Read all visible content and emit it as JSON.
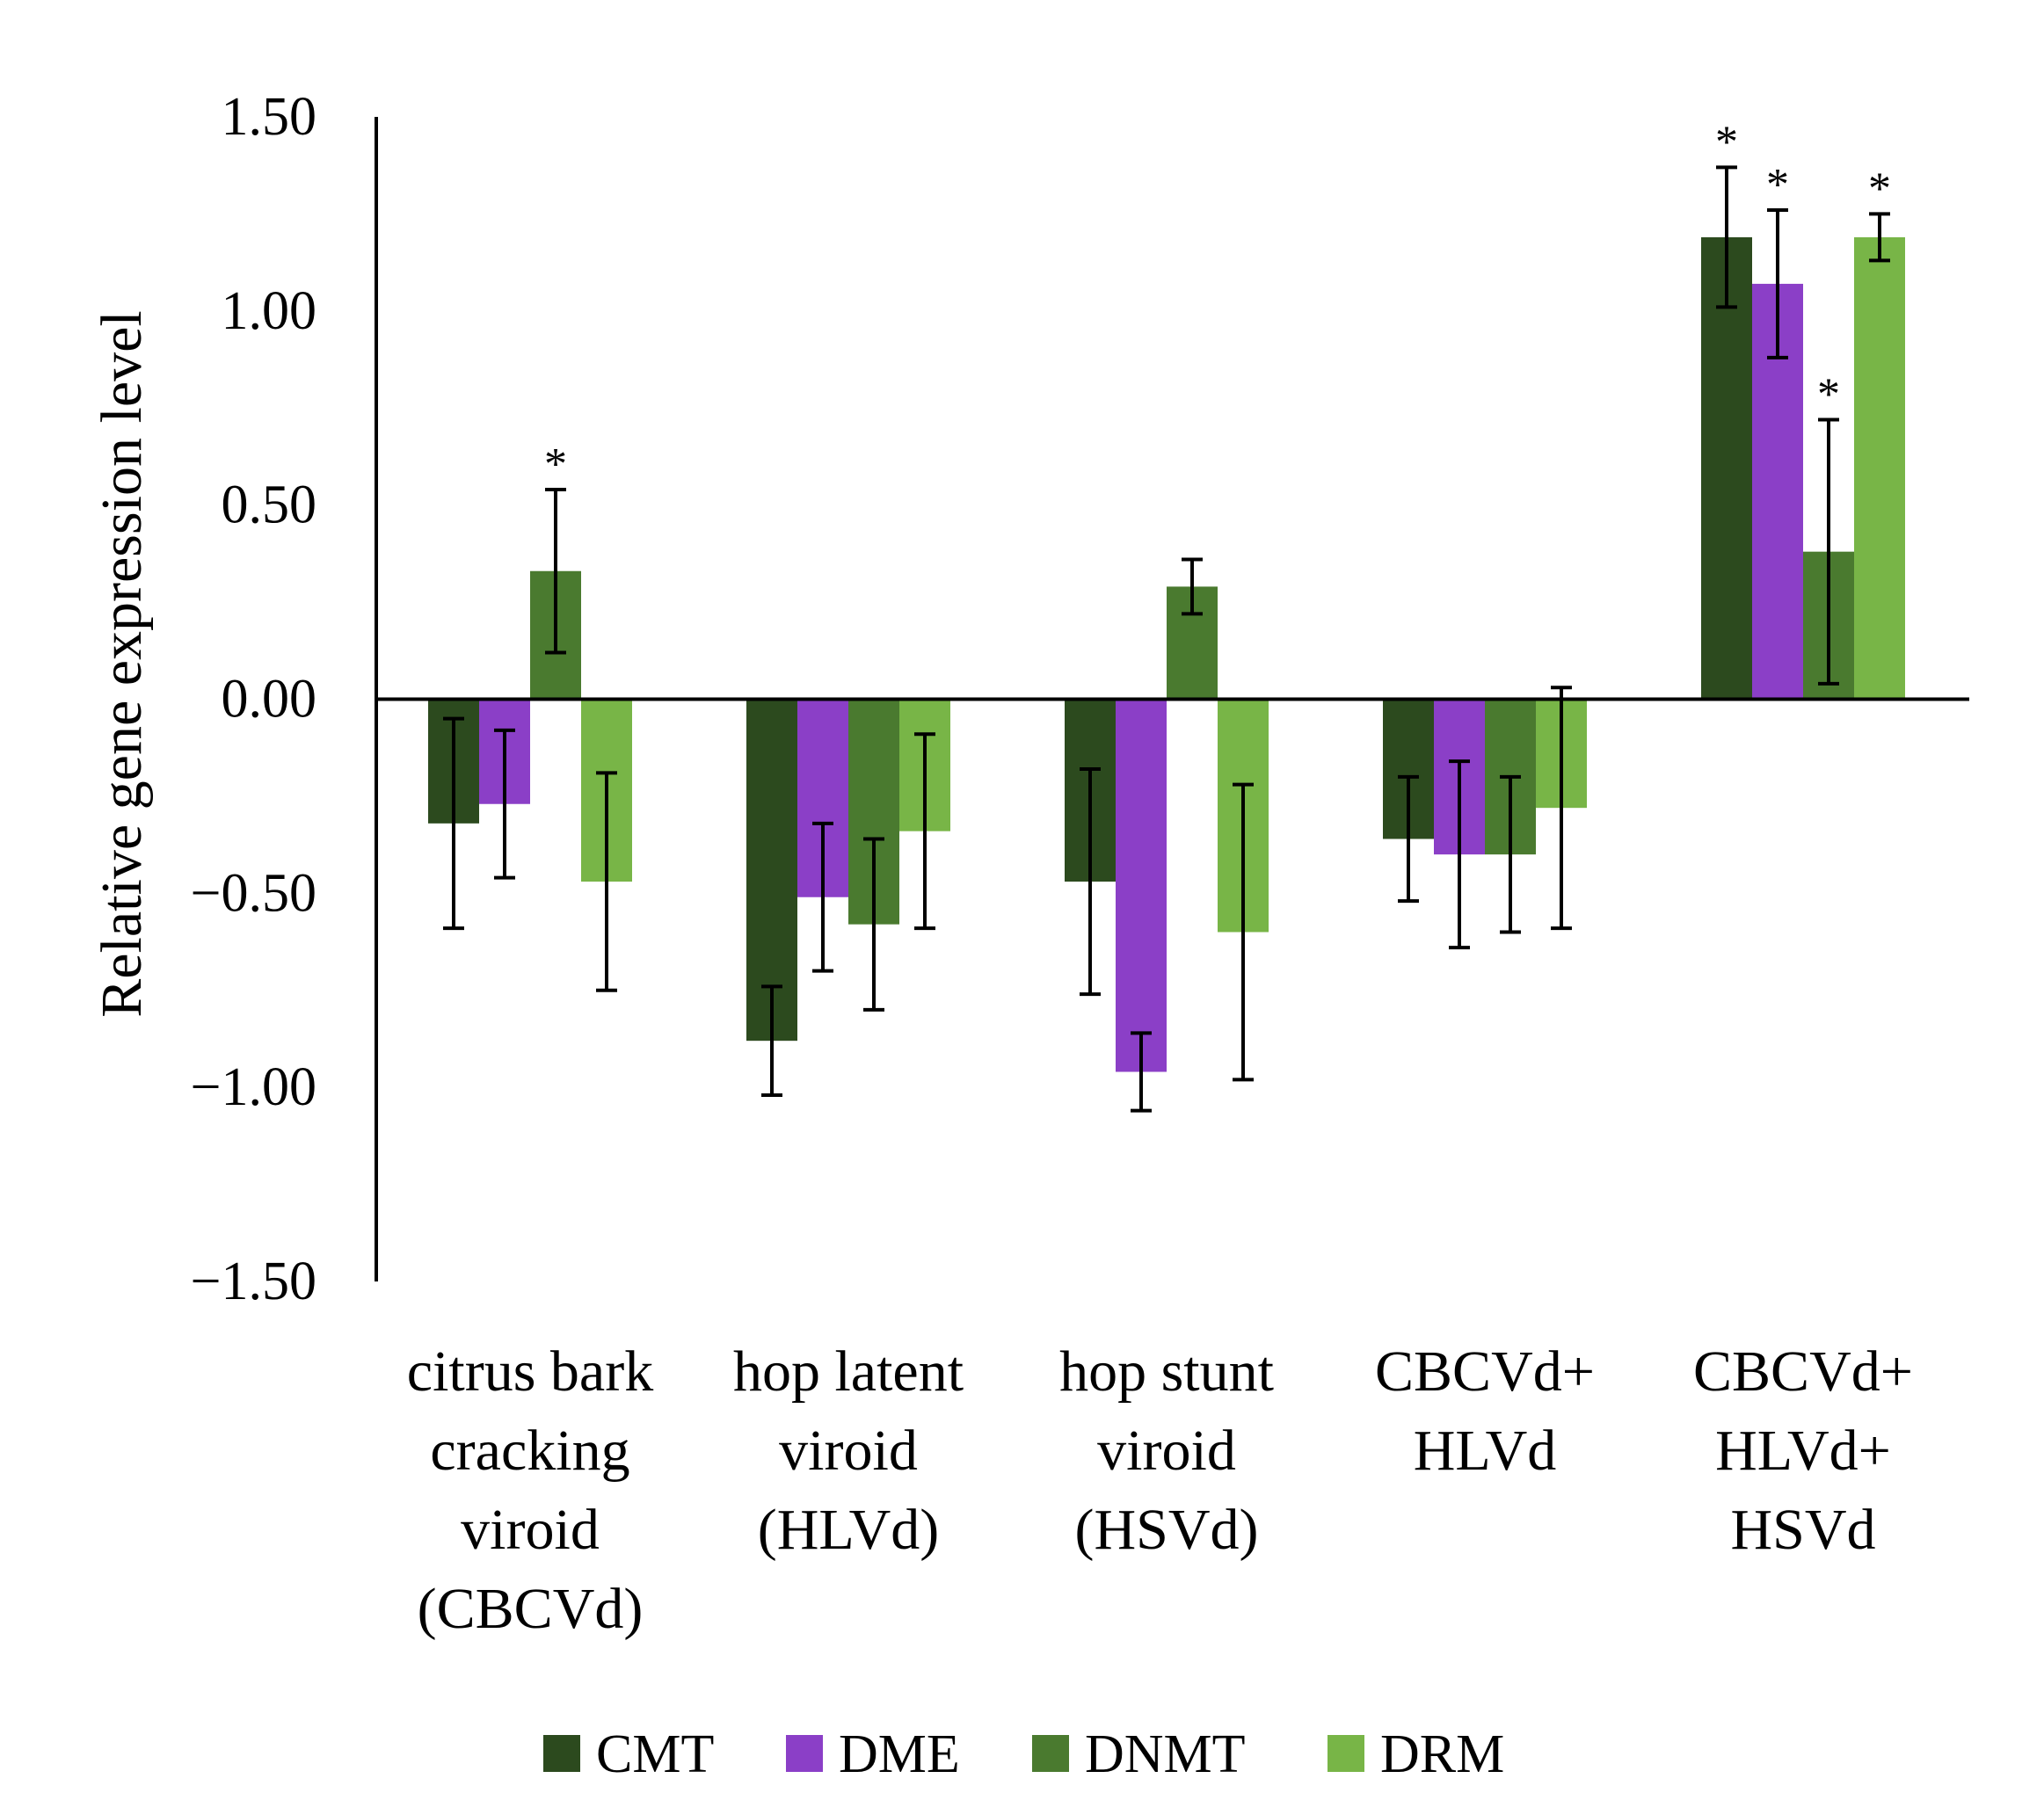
{
  "chart_data": {
    "type": "bar",
    "title": "",
    "xlabel": "",
    "ylabel": "Relative gene expression level",
    "ylim": [
      -1.5,
      1.5
    ],
    "yticks": [
      1.5,
      1.0,
      0.5,
      0.0,
      -0.5,
      -1.0,
      -1.5
    ],
    "ytick_labels": [
      "1.50",
      "1.00",
      "0.50",
      "0.00",
      "−0.50",
      "−1.00",
      "−1.50"
    ],
    "grid": false,
    "legend_position": "bottom",
    "categories": [
      [
        "citrus bark",
        "cracking",
        "viroid",
        "(CBCVd)"
      ],
      [
        "hop latent",
        "viroid",
        "(HLVd)"
      ],
      [
        "hop stunt",
        "viroid",
        "(HSVd)"
      ],
      [
        "CBCVd+",
        "HLVd"
      ],
      [
        "CBCVd+",
        "HLVd+",
        "HSVd"
      ]
    ],
    "series": [
      {
        "name": "CMT",
        "color": "#2c4a1e",
        "values": [
          -0.32,
          -0.88,
          -0.47,
          -0.36,
          1.19
        ],
        "errors": [
          0.27,
          0.14,
          0.29,
          0.16,
          0.18
        ],
        "significant": [
          false,
          false,
          false,
          false,
          true
        ]
      },
      {
        "name": "DME",
        "color": "#8b3fc7",
        "values": [
          -0.27,
          -0.51,
          -0.96,
          -0.4,
          1.07
        ],
        "errors": [
          0.19,
          0.19,
          0.1,
          0.24,
          0.19
        ],
        "significant": [
          false,
          false,
          false,
          false,
          true
        ]
      },
      {
        "name": "DNMT",
        "color": "#4a7a2f",
        "values": [
          0.33,
          -0.58,
          0.29,
          -0.4,
          0.38
        ],
        "errors": [
          0.21,
          0.22,
          0.07,
          0.2,
          0.34
        ],
        "significant": [
          true,
          false,
          false,
          false,
          true
        ]
      },
      {
        "name": "DRM",
        "color": "#78b547",
        "values": [
          -0.47,
          -0.34,
          -0.6,
          -0.28,
          1.19
        ],
        "errors": [
          0.28,
          0.25,
          0.38,
          0.31,
          0.06
        ],
        "significant": [
          false,
          false,
          false,
          false,
          true
        ]
      }
    ],
    "significance_marker": "*"
  }
}
